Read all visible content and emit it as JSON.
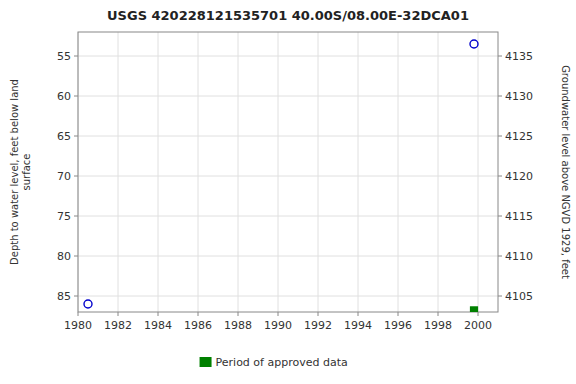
{
  "chart_data": {
    "type": "scatter",
    "title": "USGS 420228121535701 40.00S/08.00E-32DCA01",
    "ylabel": "Depth to water level, feet below land\nsurface",
    "y2label": "Groundwater level above NGVD 1929, feet",
    "xlim": [
      1980,
      2001
    ],
    "xticks": [
      1980,
      1982,
      1984,
      1986,
      1988,
      1990,
      1992,
      1994,
      1996,
      1998,
      2000
    ],
    "ylim": [
      87,
      52
    ],
    "yticks": [
      55,
      60,
      65,
      70,
      75,
      80,
      85
    ],
    "y2lim": [
      4103,
      4138
    ],
    "y2ticks": [
      4135,
      4130,
      4125,
      4120,
      4115,
      4110,
      4105
    ],
    "grid": true,
    "legend": "bottom",
    "series": [
      {
        "x": [
          1980.5,
          1999.8
        ],
        "values": [
          86.0,
          53.5
        ],
        "color": "#0000cc",
        "marker": "open-circle"
      },
      {
        "name": "Period of approved data",
        "x": [
          1999.8
        ],
        "values": [
          86.8
        ],
        "color": "#008000",
        "marker": "square"
      }
    ]
  }
}
